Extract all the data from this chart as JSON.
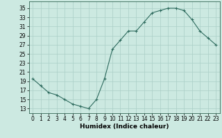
{
  "x": [
    0,
    1,
    2,
    3,
    4,
    5,
    6,
    7,
    8,
    9,
    10,
    11,
    12,
    13,
    14,
    15,
    16,
    17,
    18,
    19,
    20,
    21,
    22,
    23
  ],
  "y": [
    19.5,
    18,
    16.5,
    16,
    15,
    14,
    13.5,
    13,
    15,
    19.5,
    26,
    28,
    30,
    30,
    32,
    34,
    34.5,
    35,
    35,
    34.5,
    32.5,
    30,
    28.5,
    27
  ],
  "line_color": "#2e6b5e",
  "marker_color": "#2e6b5e",
  "bg_color": "#cce9e1",
  "grid_color": "#aacfc7",
  "xlabel": "Humidex (Indice chaleur)",
  "xlim": [
    -0.5,
    23.5
  ],
  "ylim": [
    12,
    36.5
  ],
  "yticks": [
    13,
    15,
    17,
    19,
    21,
    23,
    25,
    27,
    29,
    31,
    33,
    35
  ],
  "xticks": [
    0,
    1,
    2,
    3,
    4,
    5,
    6,
    7,
    8,
    9,
    10,
    11,
    12,
    13,
    14,
    15,
    16,
    17,
    18,
    19,
    20,
    21,
    22,
    23
  ],
  "tick_font_size": 5.5,
  "label_font_size": 6.5
}
